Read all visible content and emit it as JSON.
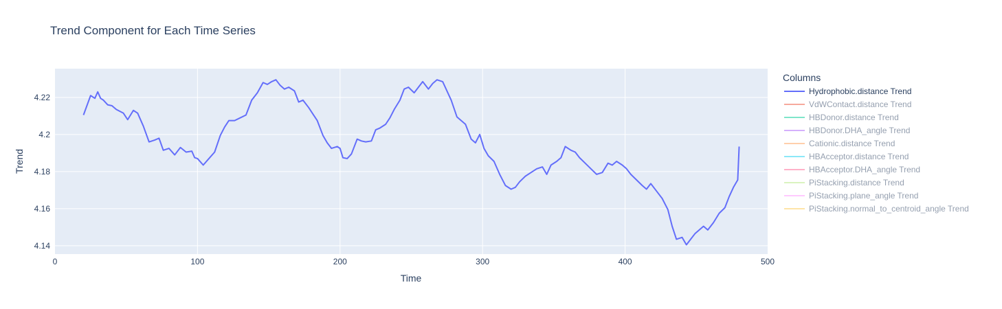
{
  "chart_data": {
    "type": "line",
    "title": "Trend Component for Each Time Series",
    "xlabel": "Time",
    "ylabel": "Trend",
    "xlim": [
      0,
      500
    ],
    "ylim": [
      4.1355,
      4.2355
    ],
    "x_ticks": [
      0,
      100,
      200,
      300,
      400,
      500
    ],
    "y_ticks": [
      4.14,
      4.16,
      4.18,
      4.2,
      4.22
    ],
    "y_tick_labels": [
      "4.14",
      "4.16",
      "4.18",
      "4.2",
      "4.22"
    ],
    "grid": true,
    "plot_bgcolor": "#e5ecf6",
    "legend_title": "Columns",
    "legend_position": "right",
    "series": [
      {
        "name": "Hydrophobic.distance Trend",
        "color": "#636efa",
        "visible": true,
        "x": [
          20,
          25,
          28,
          30,
          32,
          34,
          37,
          40,
          43,
          48,
          51,
          55,
          58,
          62,
          66,
          70,
          73,
          76,
          80,
          84,
          88,
          92,
          96,
          98,
          100,
          104,
          108,
          112,
          116,
          119,
          122,
          126,
          130,
          134,
          138,
          142,
          146,
          149,
          152,
          155,
          158,
          161,
          164,
          168,
          171,
          174,
          178,
          181,
          184,
          188,
          191,
          194,
          198,
          200,
          202,
          205,
          208,
          212,
          215,
          218,
          222,
          225,
          228,
          232,
          235,
          238,
          242,
          245,
          248,
          252,
          255,
          258,
          262,
          265,
          268,
          272,
          275,
          278,
          282,
          285,
          288,
          292,
          295,
          298,
          301,
          304,
          308,
          312,
          316,
          320,
          323,
          326,
          330,
          334,
          338,
          342,
          345,
          348,
          352,
          355,
          358,
          362,
          365,
          368,
          372,
          376,
          380,
          384,
          388,
          391,
          394,
          398,
          401,
          404,
          408,
          412,
          415,
          418,
          422,
          426,
          430,
          433,
          436,
          440,
          443,
          446,
          449,
          452,
          455,
          458,
          462,
          466,
          470,
          473,
          476,
          479,
          480
        ],
        "y": [
          4.2105,
          4.221,
          4.2195,
          4.223,
          4.2195,
          4.2185,
          4.216,
          4.2155,
          4.2135,
          4.2115,
          4.208,
          4.213,
          4.2115,
          4.2045,
          4.196,
          4.197,
          4.198,
          4.1915,
          4.1925,
          4.189,
          4.193,
          4.1905,
          4.191,
          4.1875,
          4.187,
          4.1835,
          4.187,
          4.1905,
          4.1995,
          4.204,
          4.2075,
          4.2075,
          4.209,
          4.2105,
          4.2185,
          4.2225,
          4.228,
          4.227,
          4.2285,
          4.2295,
          4.2265,
          4.2245,
          4.2255,
          4.2235,
          4.2175,
          4.2185,
          4.2145,
          4.211,
          4.2075,
          4.1995,
          4.1955,
          4.1925,
          4.1935,
          4.1925,
          4.1875,
          4.187,
          4.1895,
          4.1975,
          4.1965,
          4.196,
          4.1965,
          4.2025,
          4.2035,
          4.2055,
          4.209,
          4.2135,
          4.2185,
          4.2245,
          4.2255,
          4.2225,
          4.2255,
          4.2285,
          4.2245,
          4.2275,
          4.2295,
          4.2285,
          4.2235,
          4.2185,
          4.2095,
          4.2075,
          4.2055,
          4.1975,
          4.1955,
          4.2,
          4.1925,
          4.1885,
          4.1855,
          4.1785,
          4.1725,
          4.1705,
          4.1715,
          4.1745,
          4.1775,
          4.1795,
          4.1815,
          4.1825,
          4.1785,
          4.1835,
          4.1855,
          4.1875,
          4.1935,
          4.1915,
          4.1905,
          4.1875,
          4.1845,
          4.1815,
          4.1785,
          4.1795,
          4.1845,
          4.1835,
          4.1855,
          4.1835,
          4.1815,
          4.1785,
          4.1755,
          4.1725,
          4.1705,
          4.1735,
          4.1695,
          4.1655,
          4.1595,
          4.1505,
          4.1435,
          4.1445,
          4.1405,
          4.1435,
          4.1465,
          4.1485,
          4.1505,
          4.1485,
          4.1525,
          4.1575,
          4.1605,
          4.1665,
          4.1715,
          4.1755,
          4.1935
        ]
      },
      {
        "name": "VdWContact.distance Trend",
        "color": "#ef553b",
        "visible": false
      },
      {
        "name": "HBDonor.distance Trend",
        "color": "#00cc96",
        "visible": false
      },
      {
        "name": "HBDonor.DHA_angle Trend",
        "color": "#ab63fa",
        "visible": false
      },
      {
        "name": "Cationic.distance Trend",
        "color": "#ffa15a",
        "visible": false
      },
      {
        "name": "HBAcceptor.distance Trend",
        "color": "#19d3f3",
        "visible": false
      },
      {
        "name": "HBAcceptor.DHA_angle Trend",
        "color": "#ff6692",
        "visible": false
      },
      {
        "name": "PiStacking.distance Trend",
        "color": "#b6e880",
        "visible": false
      },
      {
        "name": "PiStacking.plane_angle Trend",
        "color": "#ff97ff",
        "visible": false
      },
      {
        "name": "PiStacking.normal_to_centroid_angle Trend",
        "color": "#fecb52",
        "visible": false
      }
    ]
  }
}
